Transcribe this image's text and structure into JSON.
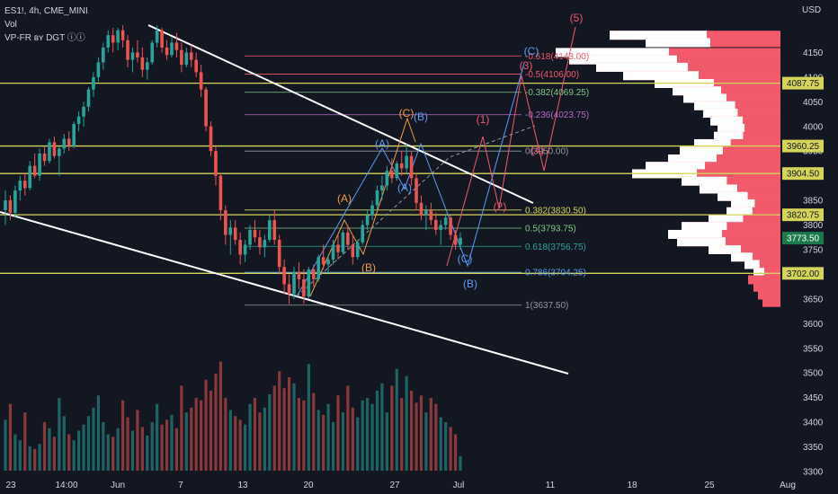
{
  "header": {
    "symbol": "ES1!, 4h, CME_MINI",
    "volume_label": "Vol",
    "indicator_label": "VP-FR ʙʏ DGT ⓘⓘ"
  },
  "price_axis": {
    "currency": "USD"
  },
  "colors": {
    "background": "#131722",
    "up": "#26a69a",
    "down": "#ef5350",
    "yellow_level": "#d4d45a",
    "white_line": "#ffffff",
    "volume_profile": "#ffffff",
    "volume_profile_red": "#f2596a"
  },
  "chart_data": {
    "type": "candlestick",
    "y_range": [
      3290,
      4220
    ],
    "y_ticks": [
      4150,
      4100,
      4050,
      4000,
      3950,
      3900,
      3850,
      3800,
      3750,
      3700,
      3650,
      3600,
      3550,
      3500,
      3450,
      3400,
      3350,
      3300
    ],
    "x_tick_labels": [
      "23",
      "14:00",
      "Jun",
      "7",
      "13",
      "20",
      "27",
      "Jul",
      "11",
      "18",
      "25",
      "Aug"
    ],
    "highlighted_levels": [
      {
        "label": "4087.75",
        "price": 4087.75
      },
      {
        "label": "3960.25",
        "price": 3960.25
      },
      {
        "label": "3904.50",
        "price": 3904.5
      },
      {
        "label": "3820.75",
        "price": 3820.75
      },
      {
        "label": "3702.00",
        "price": 3702
      }
    ],
    "current_price": {
      "label": "3773.50",
      "price": 3773.5
    },
    "fib_levels": [
      {
        "label": "-0.618(4143.00)",
        "price": 4143,
        "color": "#f2596a"
      },
      {
        "label": "-0.5(4106.00)",
        "price": 4106,
        "color": "#f2596a"
      },
      {
        "label": "-0.382(4069.25)",
        "price": 4069.25,
        "color": "#81c784"
      },
      {
        "label": "-0.236(4023.75)",
        "price": 4023.75,
        "color": "#ba68c8"
      },
      {
        "label": "0(3950.00)",
        "price": 3950,
        "color": "#9598a1"
      },
      {
        "label": "0.382(3830.50)",
        "price": 3830.5,
        "color": "#d4d45a"
      },
      {
        "label": "0.5(3793.75)",
        "price": 3793.75,
        "color": "#81c784"
      },
      {
        "label": "0.618(3756.75)",
        "price": 3756.75,
        "color": "#26a69a"
      },
      {
        "label": "0.786(3704.25)",
        "price": 3704.25,
        "color": "#5b9cf6"
      },
      {
        "label": "1(3637.50)",
        "price": 3637.5,
        "color": "#9598a1"
      }
    ],
    "wave_labels": [
      {
        "text": "(5)",
        "color": "#f2596a"
      },
      {
        "text": "(C)",
        "color": "#5b9cf6"
      },
      {
        "text": "(3)",
        "color": "#f2596a"
      },
      {
        "text": "(C)",
        "color": "#f59b42"
      },
      {
        "text": "(B)",
        "color": "#5b9cf6"
      },
      {
        "text": "(1)",
        "color": "#f2596a"
      },
      {
        "text": "(A)",
        "color": "#5b9cf6"
      },
      {
        "text": "(4)",
        "color": "#f2596a"
      },
      {
        "text": "(A)",
        "color": "#5b9cf6"
      },
      {
        "text": "(A)",
        "color": "#f59b42"
      },
      {
        "text": "(2)",
        "color": "#f2596a"
      },
      {
        "text": "(B)",
        "color": "#f59b42"
      },
      {
        "text": "(C)",
        "color": "#5b9cf6"
      },
      {
        "text": "(B)",
        "color": "#5b9cf6"
      }
    ],
    "waypoint_anchors": [
      [
        3637,
        3960
      ],
      [
        3760,
        3940
      ],
      [
        3710,
        3860
      ],
      [
        3830,
        3960
      ],
      [
        3880,
        3705
      ],
      [
        3705,
        3965
      ],
      [
        3850,
        3705
      ],
      [
        3965,
        3830
      ],
      [
        4000,
        4120
      ],
      [
        4100,
        4200
      ]
    ],
    "candles_ohlc": [
      [
        3830,
        3870,
        3800,
        3850
      ],
      [
        3850,
        3860,
        3810,
        3825
      ],
      [
        3825,
        3880,
        3815,
        3870
      ],
      [
        3870,
        3900,
        3850,
        3890
      ],
      [
        3890,
        3905,
        3860,
        3875
      ],
      [
        3875,
        3930,
        3870,
        3920
      ],
      [
        3920,
        3945,
        3895,
        3900
      ],
      [
        3900,
        3955,
        3890,
        3945
      ],
      [
        3945,
        3960,
        3920,
        3930
      ],
      [
        3930,
        3975,
        3925,
        3968
      ],
      [
        3968,
        3980,
        3935,
        3940
      ],
      [
        3940,
        3960,
        3900,
        3955
      ],
      [
        3955,
        3985,
        3945,
        3975
      ],
      [
        3975,
        3990,
        3950,
        3960
      ],
      [
        3960,
        4010,
        3955,
        4005
      ],
      [
        4005,
        4030,
        3990,
        4020
      ],
      [
        4020,
        4050,
        4000,
        4040
      ],
      [
        4040,
        4080,
        4030,
        4075
      ],
      [
        4075,
        4110,
        4060,
        4100
      ],
      [
        4100,
        4140,
        4090,
        4130
      ],
      [
        4130,
        4170,
        4115,
        4160
      ],
      [
        4160,
        4195,
        4150,
        4185
      ],
      [
        4185,
        4200,
        4150,
        4170
      ],
      [
        4170,
        4200,
        4155,
        4195
      ],
      [
        4195,
        4205,
        4160,
        4175
      ],
      [
        4175,
        4185,
        4120,
        4135
      ],
      [
        4135,
        4160,
        4110,
        4150
      ],
      [
        4150,
        4175,
        4130,
        4140
      ],
      [
        4140,
        4160,
        4100,
        4115
      ],
      [
        4115,
        4140,
        4095,
        4130
      ],
      [
        4130,
        4175,
        4125,
        4170
      ],
      [
        4170,
        4205,
        4160,
        4195
      ],
      [
        4195,
        4200,
        4150,
        4160
      ],
      [
        4160,
        4175,
        4135,
        4145
      ],
      [
        4145,
        4180,
        4140,
        4170
      ],
      [
        4170,
        4190,
        4140,
        4155
      ],
      [
        4155,
        4170,
        4110,
        4125
      ],
      [
        4125,
        4160,
        4120,
        4150
      ],
      [
        4150,
        4165,
        4120,
        4135
      ],
      [
        4135,
        4150,
        4100,
        4110
      ],
      [
        4110,
        4125,
        4060,
        4075
      ],
      [
        4075,
        4080,
        3990,
        4000
      ],
      [
        4000,
        4010,
        3940,
        3950
      ],
      [
        3950,
        3960,
        3880,
        3900
      ],
      [
        3900,
        3905,
        3810,
        3830
      ],
      [
        3830,
        3840,
        3760,
        3780
      ],
      [
        3780,
        3810,
        3740,
        3795
      ],
      [
        3795,
        3810,
        3760,
        3770
      ],
      [
        3770,
        3785,
        3720,
        3740
      ],
      [
        3740,
        3770,
        3725,
        3760
      ],
      [
        3760,
        3800,
        3750,
        3790
      ],
      [
        3790,
        3810,
        3765,
        3775
      ],
      [
        3775,
        3790,
        3740,
        3755
      ],
      [
        3755,
        3780,
        3735,
        3770
      ],
      [
        3770,
        3820,
        3765,
        3810
      ],
      [
        3810,
        3830,
        3760,
        3770
      ],
      [
        3770,
        3780,
        3700,
        3715
      ],
      [
        3715,
        3730,
        3660,
        3680
      ],
      [
        3680,
        3700,
        3640,
        3660
      ],
      [
        3660,
        3715,
        3650,
        3705
      ],
      [
        3705,
        3725,
        3670,
        3690
      ],
      [
        3690,
        3710,
        3640,
        3655
      ],
      [
        3655,
        3715,
        3650,
        3710
      ],
      [
        3710,
        3720,
        3675,
        3690
      ],
      [
        3690,
        3740,
        3685,
        3735
      ],
      [
        3735,
        3760,
        3710,
        3720
      ],
      [
        3720,
        3740,
        3700,
        3730
      ],
      [
        3730,
        3770,
        3720,
        3760
      ],
      [
        3760,
        3780,
        3730,
        3745
      ],
      [
        3745,
        3790,
        3740,
        3785
      ],
      [
        3785,
        3800,
        3750,
        3760
      ],
      [
        3760,
        3780,
        3720,
        3735
      ],
      [
        3735,
        3770,
        3730,
        3765
      ],
      [
        3765,
        3810,
        3760,
        3800
      ],
      [
        3800,
        3830,
        3790,
        3820
      ],
      [
        3820,
        3850,
        3810,
        3840
      ],
      [
        3840,
        3880,
        3830,
        3870
      ],
      [
        3870,
        3900,
        3850,
        3880
      ],
      [
        3880,
        3920,
        3870,
        3910
      ],
      [
        3910,
        3935,
        3885,
        3895
      ],
      [
        3895,
        3930,
        3890,
        3925
      ],
      [
        3925,
        3950,
        3900,
        3915
      ],
      [
        3915,
        3965,
        3905,
        3940
      ],
      [
        3940,
        3950,
        3880,
        3895
      ],
      [
        3895,
        3905,
        3830,
        3845
      ],
      [
        3845,
        3860,
        3810,
        3820
      ],
      [
        3820,
        3840,
        3790,
        3830
      ],
      [
        3830,
        3845,
        3800,
        3810
      ],
      [
        3810,
        3825,
        3780,
        3790
      ],
      [
        3790,
        3810,
        3760,
        3800
      ],
      [
        3800,
        3820,
        3790,
        3815
      ],
      [
        3815,
        3820,
        3770,
        3780
      ],
      [
        3780,
        3790,
        3750,
        3760
      ],
      [
        3760,
        3785,
        3750,
        3774
      ]
    ],
    "volume_values": [
      42,
      55,
      30,
      25,
      48,
      20,
      18,
      22,
      40,
      35,
      28,
      60,
      45,
      30,
      25,
      33,
      38,
      45,
      52,
      62,
      40,
      30,
      28,
      35,
      58,
      44,
      33,
      50,
      36,
      29,
      40,
      55,
      38,
      42,
      46,
      35,
      70,
      48,
      52,
      60,
      58,
      75,
      66,
      80,
      90,
      60,
      50,
      45,
      42,
      38,
      55,
      60,
      48,
      52,
      63,
      70,
      82,
      68,
      77,
      72,
      60,
      58,
      88,
      64,
      50,
      46,
      55,
      40,
      62,
      48,
      70,
      52,
      44,
      58,
      60,
      55,
      66,
      72,
      48,
      70,
      84,
      60,
      78,
      66,
      56,
      62,
      48,
      60,
      55,
      44,
      40,
      36,
      30,
      12
    ],
    "volume_profile_rows": [
      {
        "price": 4185,
        "total": 190,
        "up": 90
      },
      {
        "price": 4170,
        "total": 150,
        "up": 60
      },
      {
        "price": 4150,
        "total": 250,
        "up": 105
      },
      {
        "price": 4135,
        "total": 235,
        "up": 100
      },
      {
        "price": 4120,
        "total": 205,
        "up": 85
      },
      {
        "price": 4103,
        "total": 175,
        "up": 70
      },
      {
        "price": 4087,
        "total": 140,
        "up": 55
      },
      {
        "price": 4072,
        "total": 120,
        "up": 45
      },
      {
        "price": 4057,
        "total": 108,
        "up": 40
      },
      {
        "price": 4042,
        "total": 96,
        "up": 38
      },
      {
        "price": 4027,
        "total": 86,
        "up": 32
      },
      {
        "price": 4011,
        "total": 78,
        "up": 30
      },
      {
        "price": 3996,
        "total": 70,
        "up": 25
      },
      {
        "price": 3980,
        "total": 74,
        "up": 27
      },
      {
        "price": 3965,
        "total": 96,
        "up": 34
      },
      {
        "price": 3950,
        "total": 112,
        "up": 40
      },
      {
        "price": 3934,
        "total": 125,
        "up": 45
      },
      {
        "price": 3919,
        "total": 150,
        "up": 55
      },
      {
        "price": 3904,
        "total": 165,
        "up": 60
      },
      {
        "price": 3889,
        "total": 110,
        "up": 42
      },
      {
        "price": 3873,
        "total": 90,
        "up": 35
      },
      {
        "price": 3858,
        "total": 70,
        "up": 28
      },
      {
        "price": 3843,
        "total": 55,
        "up": 22
      },
      {
        "price": 3827,
        "total": 60,
        "up": 24
      },
      {
        "price": 3812,
        "total": 80,
        "up": 32
      },
      {
        "price": 3797,
        "total": 110,
        "up": 42
      },
      {
        "price": 3781,
        "total": 125,
        "up": 50
      },
      {
        "price": 3766,
        "total": 115,
        "up": 45
      },
      {
        "price": 3750,
        "total": 80,
        "up": 30
      },
      {
        "price": 3735,
        "total": 55,
        "up": 20
      },
      {
        "price": 3720,
        "total": 40,
        "up": 14
      },
      {
        "price": 3704,
        "total": 30,
        "up": 10
      },
      {
        "price": 3689,
        "total": 36,
        "up": 0
      },
      {
        "price": 3674,
        "total": 30,
        "up": 0
      },
      {
        "price": 3658,
        "total": 25,
        "up": 0
      },
      {
        "price": 3643,
        "total": 20,
        "up": 0
      }
    ]
  }
}
